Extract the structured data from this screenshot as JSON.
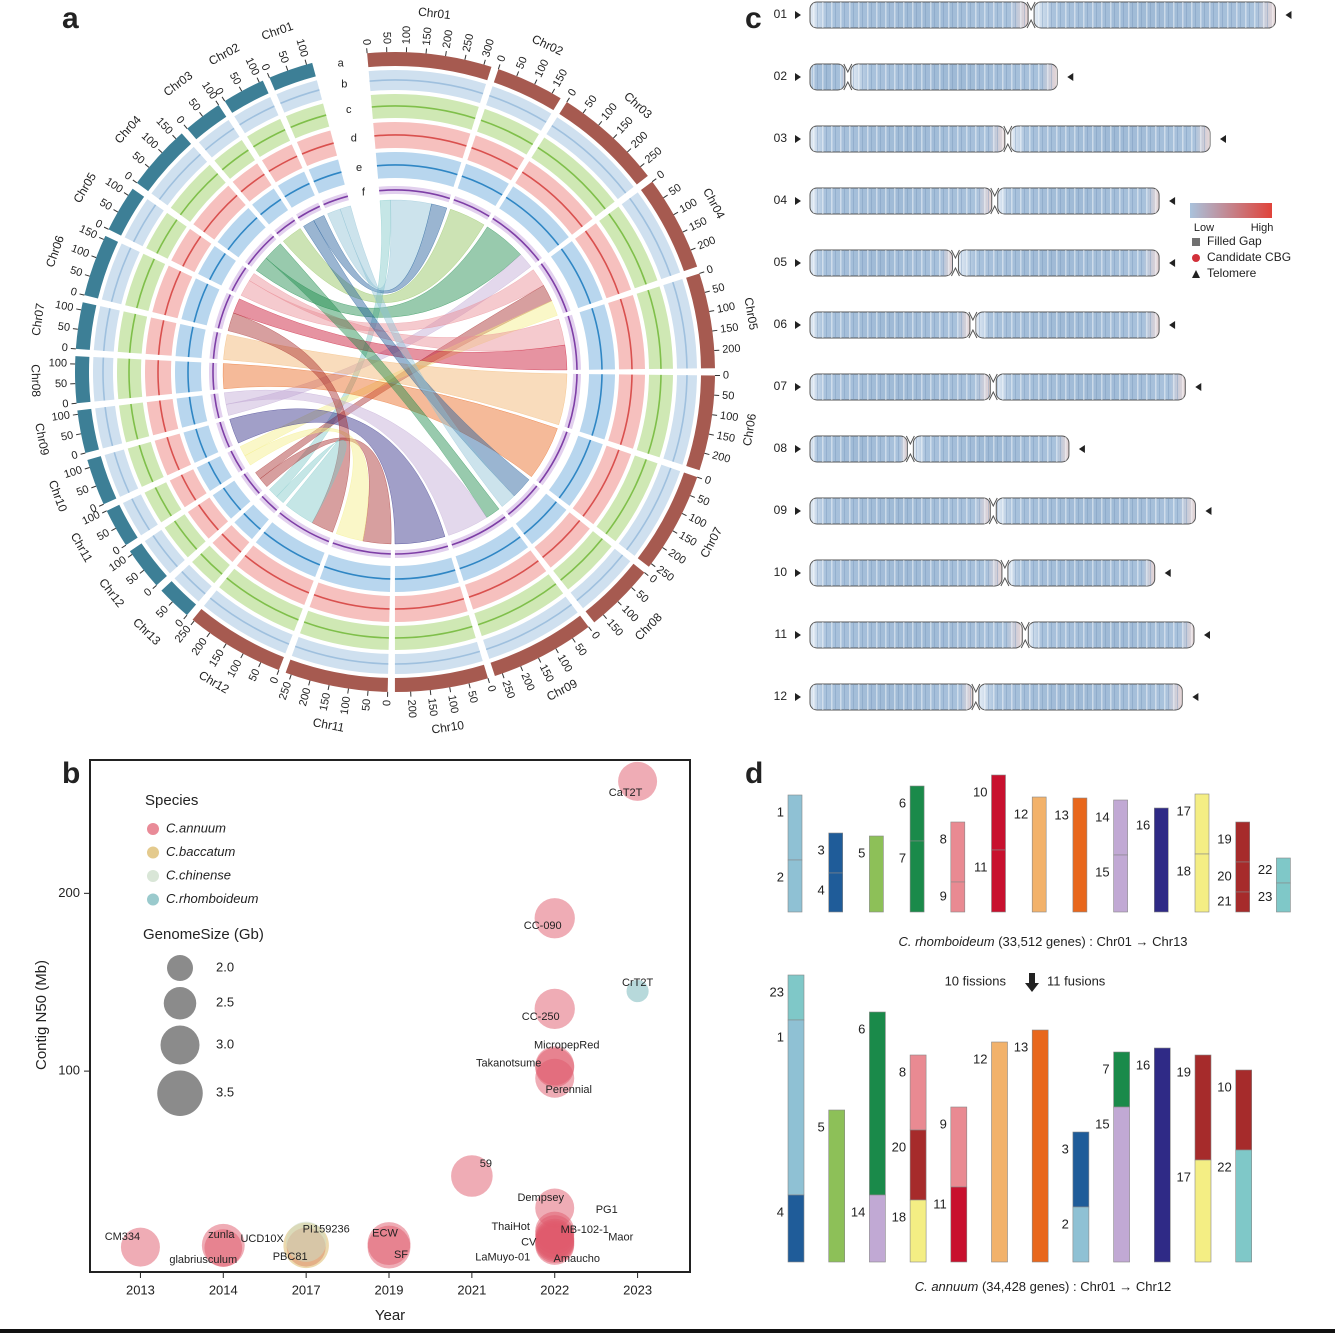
{
  "panels": [
    "a",
    "b",
    "c",
    "d"
  ],
  "chart_data": [
    {
      "type": "circos",
      "tracks": [
        "a",
        "b",
        "c",
        "d",
        "e",
        "f"
      ],
      "tick_values": [
        0,
        50,
        100,
        150,
        200,
        250,
        300
      ],
      "series": [
        {
          "color": "#a65a50",
          "categories": [
            "Chr01",
            "Chr02",
            "Chr03",
            "Chr04",
            "Chr05",
            "Chr06",
            "Chr07",
            "Chr08",
            "Chr09",
            "Chr10",
            "Chr11",
            "Chr12"
          ],
          "values": [
            320,
            175,
            280,
            245,
            245,
            245,
            260,
            180,
            270,
            240,
            265,
            255
          ]
        },
        {
          "color": "#3d7f96",
          "categories": [
            "Chr01",
            "Chr02",
            "Chr03",
            "Chr04",
            "Chr05",
            "Chr06",
            "Chr07",
            "Chr08",
            "Chr09",
            "Chr10",
            "Chr11",
            "Chr12",
            "Chr13"
          ],
          "values": [
            115,
            110,
            100,
            170,
            120,
            160,
            120,
            120,
            110,
            120,
            100,
            110,
            90
          ]
        }
      ]
    },
    {
      "type": "bubble",
      "x_label": "Year",
      "y_label": "Contig N50 (Mb)",
      "categories": [
        "2013",
        "2014",
        "2017",
        "2019",
        "2021",
        "2022",
        "2023"
      ],
      "ylim": [
        -13,
        275
      ],
      "yticks": [
        100,
        200
      ],
      "legend_title": "Species",
      "size_title": "GenomeSize (Gb)",
      "size_legend": [
        {
          "value": 2,
          "label": "2.0"
        },
        {
          "value": 2.5,
          "label": "2.5"
        },
        {
          "value": 3,
          "label": "3.0"
        },
        {
          "value": 3.5,
          "label": "3.5"
        }
      ],
      "series": [
        {
          "name": "C.annuum",
          "color": "#e05a6c",
          "labels": [
            "CM334",
            "zunla",
            "glabriusculum",
            "UCD10X",
            "ECW",
            "SF",
            "59",
            "CC-090",
            "CC-250",
            "MicropepRed",
            "Takanotsume",
            "Perennial",
            "Dempsey",
            "ThaiHot",
            "CV",
            "PG1",
            "MB-102-1",
            "Maor",
            "LaMuyo-01",
            "Amaucho",
            "CaT2T"
          ],
          "x": [
            "2013",
            "2014",
            "2014",
            "2017",
            "2019",
            "2019",
            "2021",
            "2022",
            "2022",
            "2022",
            "2022",
            "2022",
            "2022",
            "2022",
            "2022",
            "2022",
            "2022",
            "2022",
            "2022",
            "2022",
            "2023"
          ],
          "values": [
            1,
            2,
            0.5,
            1,
            3,
            1,
            41,
            186,
            135,
            103,
            102,
            96,
            23,
            10,
            8,
            6,
            5,
            4,
            3,
            2,
            263
          ],
          "sizes": [
            3.0,
            3.3,
            2.9,
            3.0,
            3.3,
            3.3,
            3.2,
            3.1,
            3.1,
            3.0,
            3.0,
            3.0,
            3.0,
            3.0,
            3.0,
            3.0,
            3.0,
            3.0,
            3.0,
            3.0,
            3.0
          ]
        },
        {
          "name": "C.baccatum",
          "color": "#d9b35c",
          "labels": [
            "PBC81"
          ],
          "x": [
            "2017"
          ],
          "values": [
            2
          ],
          "sizes": [
            3.5
          ]
        },
        {
          "name": "C.chinense",
          "color": "#c9dcc6",
          "labels": [
            "PI159236"
          ],
          "x": [
            "2017"
          ],
          "values": [
            4
          ],
          "sizes": [
            3.1
          ]
        },
        {
          "name": "C.rhomboideum",
          "color": "#6fb3b8",
          "labels": [
            "CrT2T"
          ],
          "x": [
            "2023"
          ],
          "values": [
            145
          ],
          "sizes": [
            1.7
          ]
        }
      ]
    },
    {
      "type": "ideogram",
      "categories": [
        "01",
        "02",
        "03",
        "04",
        "05",
        "06",
        "07",
        "08",
        "09",
        "10",
        "11",
        "12"
      ],
      "values": [
        320,
        170,
        275,
        240,
        240,
        240,
        258,
        178,
        265,
        237,
        264,
        256
      ],
      "centromeres": [
        152,
        26,
        136,
        127,
        100,
        112,
        126,
        69,
        126,
        134,
        148,
        114
      ],
      "xlim": [
        0,
        330
      ],
      "color_scale": {
        "low": "Low",
        "high": "High",
        "colors": [
          "#a9c2dc",
          "#e0433a"
        ]
      },
      "markers": [
        {
          "name": "Filled Gap",
          "color": "#707070",
          "shape": "square"
        },
        {
          "name": "Candidate CBG",
          "color": "#d2303a",
          "shape": "circle"
        },
        {
          "name": "Telomere",
          "color": "#222222",
          "shape": "triangle"
        }
      ]
    },
    {
      "type": "karyotype",
      "events": [
        "10 fissions",
        "11 fusions"
      ],
      "series": [
        {
          "species": "C. rhomboideum",
          "note": "(33,512 genes) :  Chr01 → Chr13",
          "chromosomes": [
            [
              {
                "label": "1",
                "length": 65,
                "color": "#8fc1d4"
              },
              {
                "label": "2",
                "length": 52,
                "color": "#8fc1d4"
              }
            ],
            [
              {
                "label": "3",
                "length": 40,
                "color": "#1f5c99"
              },
              {
                "label": "4",
                "length": 39,
                "color": "#1f5c99"
              }
            ],
            [
              {
                "label": "5",
                "length": 76,
                "color": "#8dc058"
              }
            ],
            [
              {
                "label": "6",
                "length": 55,
                "color": "#1a8a4a"
              },
              {
                "label": "7",
                "length": 71,
                "color": "#1a8a4a"
              }
            ],
            [
              {
                "label": "8",
                "length": 60,
                "color": "#e98a92"
              },
              {
                "label": "9",
                "length": 30,
                "color": "#e98a92"
              }
            ],
            [
              {
                "label": "10",
                "length": 75,
                "color": "#c8102e"
              },
              {
                "label": "11",
                "length": 62,
                "color": "#c8102e"
              }
            ],
            [
              {
                "label": "12",
                "length": 115,
                "color": "#f2b26b"
              }
            ],
            [
              {
                "label": "13",
                "length": 114,
                "color": "#e8671c"
              }
            ],
            [
              {
                "label": "14",
                "length": 55,
                "color": "#c1a9d4"
              },
              {
                "label": "15",
                "length": 57,
                "color": "#c1a9d4"
              }
            ],
            [
              {
                "label": "16",
                "length": 104,
                "color": "#2f2a86"
              }
            ],
            [
              {
                "label": "17",
                "length": 60,
                "color": "#f4ee84"
              },
              {
                "label": "18",
                "length": 58,
                "color": "#f4ee84"
              }
            ],
            [
              {
                "label": "19",
                "length": 40,
                "color": "#a62b2b"
              },
              {
                "label": "20",
                "length": 30,
                "color": "#a62b2b"
              },
              {
                "label": "21",
                "length": 20,
                "color": "#a62b2b"
              }
            ],
            [
              {
                "label": "22",
                "length": 25,
                "color": "#7fc8c8"
              },
              {
                "label": "23",
                "length": 29,
                "color": "#7fc8c8"
              }
            ]
          ]
        },
        {
          "species": "C. annuum",
          "note": "(34,428 genes) :   Chr01 → Chr12",
          "chromosomes": [
            [
              {
                "label": "23",
                "length": 45,
                "color": "#7fc8c8"
              },
              {
                "label": "1",
                "length": 175,
                "color": "#8fc1d4"
              },
              {
                "label": "4",
                "length": 67,
                "color": "#1f5c99"
              }
            ],
            [
              {
                "label": "5",
                "length": 152,
                "color": "#8dc058"
              }
            ],
            [
              {
                "label": "6",
                "length": 183,
                "color": "#1a8a4a"
              },
              {
                "label": "14",
                "length": 67,
                "color": "#c1a9d4"
              }
            ],
            [
              {
                "label": "8",
                "length": 75,
                "color": "#e98a92"
              },
              {
                "label": "20",
                "length": 70,
                "color": "#a62b2b"
              },
              {
                "label": "18",
                "length": 62,
                "color": "#f4ee84"
              }
            ],
            [
              {
                "label": "9",
                "length": 80,
                "color": "#e98a92"
              },
              {
                "label": "11",
                "length": 75,
                "color": "#c8102e"
              }
            ],
            [
              {
                "label": "12",
                "length": 220,
                "color": "#f2b26b"
              }
            ],
            [
              {
                "label": "13",
                "length": 232,
                "color": "#e8671c"
              }
            ],
            [
              {
                "label": "3",
                "length": 75,
                "color": "#1f5c99"
              },
              {
                "label": "2",
                "length": 55,
                "color": "#8fc1d4"
              }
            ],
            [
              {
                "label": "7",
                "length": 55,
                "color": "#1a8a4a"
              },
              {
                "label": "15",
                "length": 155,
                "color": "#c1a9d4"
              }
            ],
            [
              {
                "label": "16",
                "length": 214,
                "color": "#2f2a86"
              }
            ],
            [
              {
                "label": "19",
                "length": 105,
                "color": "#a62b2b"
              },
              {
                "label": "17",
                "length": 102,
                "color": "#f4ee84"
              }
            ],
            [
              {
                "label": "10",
                "length": 80,
                "color": "#a62b2b"
              },
              {
                "label": "22",
                "length": 112,
                "color": "#7fc8c8"
              }
            ]
          ]
        }
      ]
    }
  ]
}
